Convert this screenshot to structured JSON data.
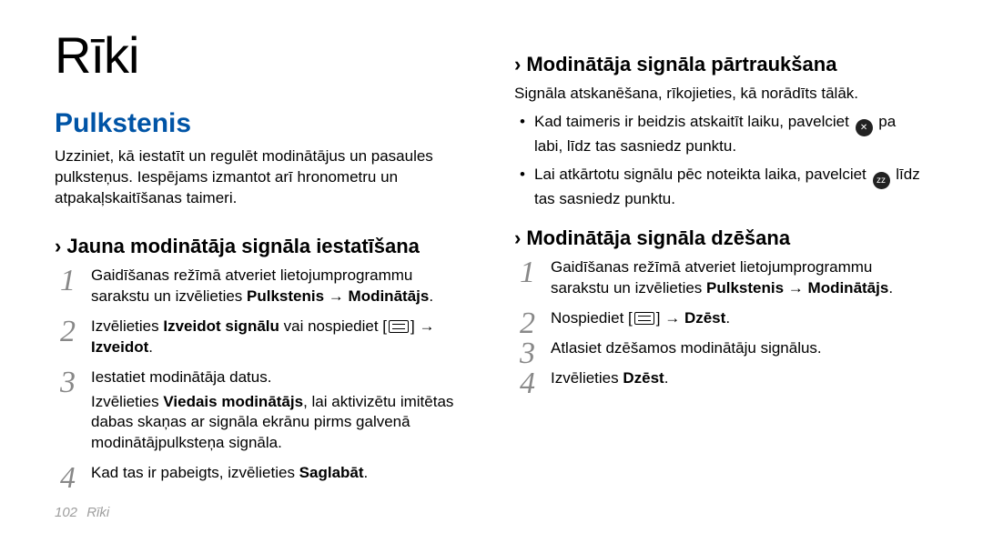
{
  "fonts": {
    "title_size": 56,
    "section_size": 30,
    "subheading_size": 22,
    "body_size": 17,
    "step_num_size": 34
  },
  "colors": {
    "text": "#000000",
    "accent": "#0054a6",
    "step_num": "#888888",
    "footer": "#9e9e9e",
    "icon_bg": "#222222",
    "icon_fg": "#ffffff"
  },
  "left": {
    "title": "Rīki",
    "section": "Pulkstenis",
    "intro": "Uzziniet, kā iestatīt un regulēt modinātājus un pasaules pulksteņus. Iespējams izmantot arī hronometru un atpakaļskaitīšanas taimeri.",
    "sub": {
      "chev": "›",
      "text": "Jauna modinātāja signāla iestatīšana"
    },
    "steps": [
      {
        "pre": "Gaidīšanas režīmā atveriet lietojumprogrammu sarakstu un izvēlieties ",
        "bold1": "Pulkstenis",
        "arrow": " → ",
        "bold2": "Modinātājs",
        "suffix": "."
      },
      {
        "pre": "Izvēlieties ",
        "bold1": "Izveidot signālu",
        "mid": " vai nospiediet [",
        "icon": "menu",
        "after_icon": "] → ",
        "bold2": "Izveidot",
        "suffix": "."
      },
      {
        "pre": "Iestatiet modinātāja datus.",
        "note_pre": "Izvēlieties ",
        "note_bold": "Viedais modinātājs",
        "note_post": ", lai aktivizētu imitētas dabas skaņas ar signāla ekrānu pirms galvenā modinātājpulksteņa signāla."
      },
      {
        "pre": "Kad tas ir pabeigts, izvēlieties ",
        "bold1": "Saglabāt",
        "suffix": "."
      }
    ]
  },
  "right": {
    "sub1": {
      "chev": "›",
      "text": "Modinātāja signāla pārtraukšana"
    },
    "subtext1": "Signāla atskanēšana, rīkojieties, kā norādīts tālāk.",
    "bullets": [
      {
        "pre": "Kad taimeris ir beidzis atskaitīt laiku, pavelciet ",
        "icon": "stop",
        "post": " pa labi, līdz tas sasniedz punktu."
      },
      {
        "pre": "Lai atkārtotu signālu pēc noteikta laika, pavelciet ",
        "icon": "zz",
        "post": " līdz tas sasniedz punktu."
      }
    ],
    "sub2": {
      "chev": "›",
      "text": "Modinātāja signāla dzēšana"
    },
    "steps": [
      {
        "pre": "Gaidīšanas režīmā atveriet lietojumprogrammu sarakstu un izvēlieties ",
        "bold1": "Pulkstenis",
        "arrow": " → ",
        "bold2": "Modinātājs",
        "suffix": "."
      },
      {
        "pre": "Nospiediet [",
        "icon": "menu",
        "after_icon": "] → ",
        "bold1": "Dzēst",
        "suffix": "."
      },
      {
        "pre": "Atlasiet dzēšamos modinātāju signālus."
      },
      {
        "pre": "Izvēlieties ",
        "bold1": "Dzēst",
        "suffix": "."
      }
    ]
  },
  "footer": {
    "page": "102",
    "label": "Rīki"
  }
}
